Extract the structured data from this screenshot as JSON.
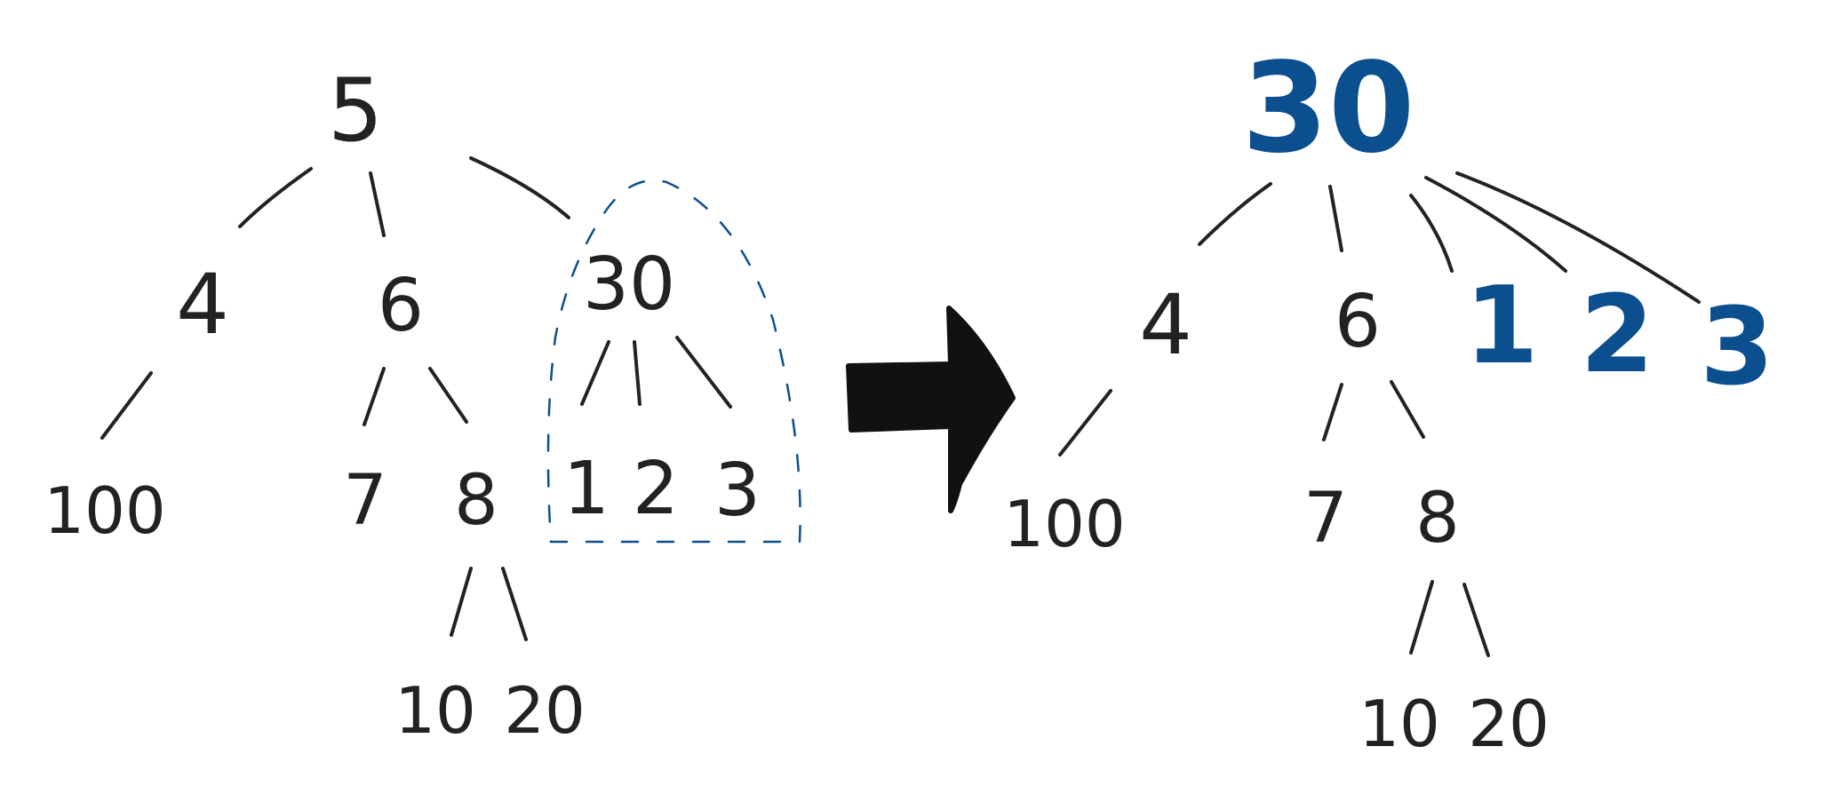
{
  "colors": {
    "ink": "#222222",
    "highlight": "#0b4f8f"
  },
  "before": {
    "root": "5",
    "level1": [
      "4",
      "6",
      "30"
    ],
    "node4_children": [
      "100"
    ],
    "node6_children": [
      "7",
      "8"
    ],
    "node30_children": [
      "1",
      "2",
      "3"
    ],
    "node8_children": [
      "10",
      "20"
    ]
  },
  "after": {
    "root": "30",
    "level1": [
      "4",
      "6",
      "1",
      "2",
      "3"
    ],
    "node4_children": [
      "100"
    ],
    "node6_children": [
      "7",
      "8"
    ],
    "node8_children": [
      "10",
      "20"
    ]
  },
  "arrow": {
    "direction": "right"
  }
}
